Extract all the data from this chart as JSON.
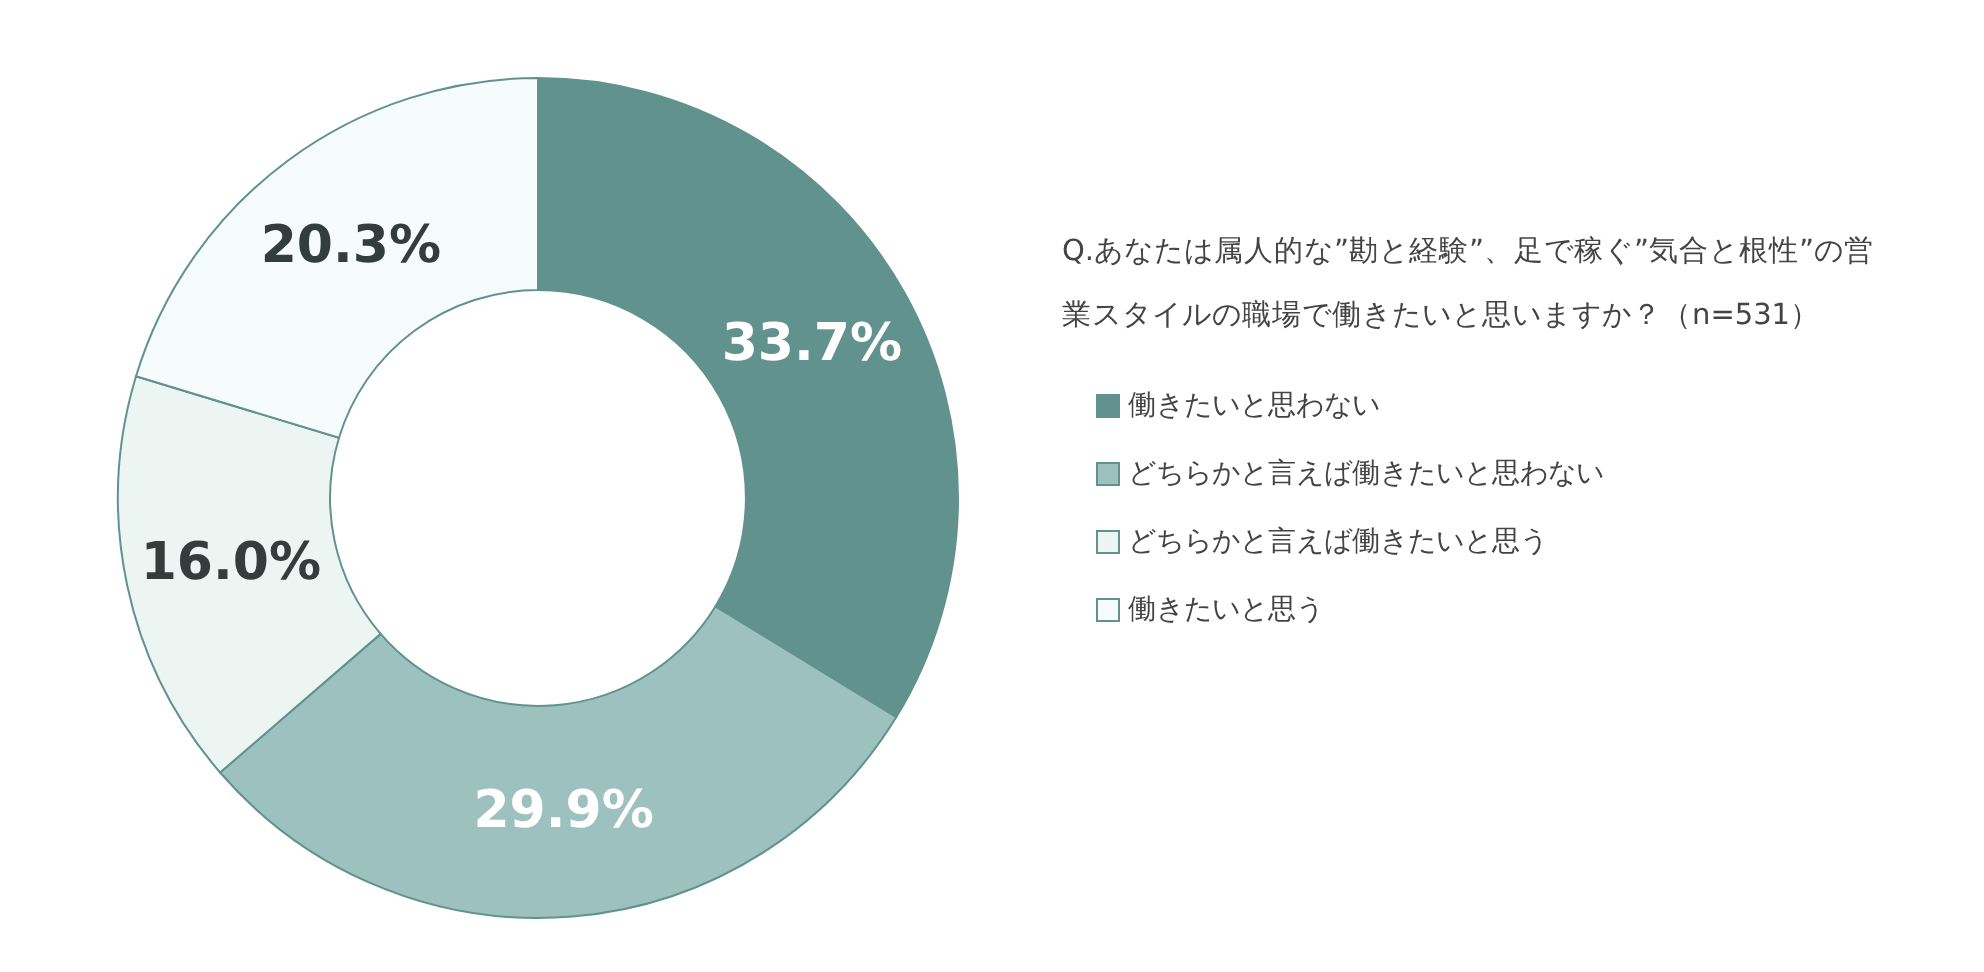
{
  "chart_data": {
    "type": "donut",
    "title": "Q.あなたは属人的な”勘と経験”、足で稼ぐ”気合と根性”の営業スタイルの職場で働きたいと思いますか？（n=531）",
    "categories": [
      "働きたいと思わない",
      "どちらかと言えば働きたいと思わない",
      "どちらかと言えば働きたいと思う",
      "働きたいと思う"
    ],
    "values": [
      33.7,
      29.9,
      16.0,
      20.3
    ],
    "value_labels": [
      "33.7%",
      "29.9%",
      "16.0%",
      "20.3%"
    ],
    "colors": [
      "#61928e",
      "#9cc1bf",
      "#ecf5f2",
      "#f6fbfb"
    ],
    "legend": "right"
  }
}
